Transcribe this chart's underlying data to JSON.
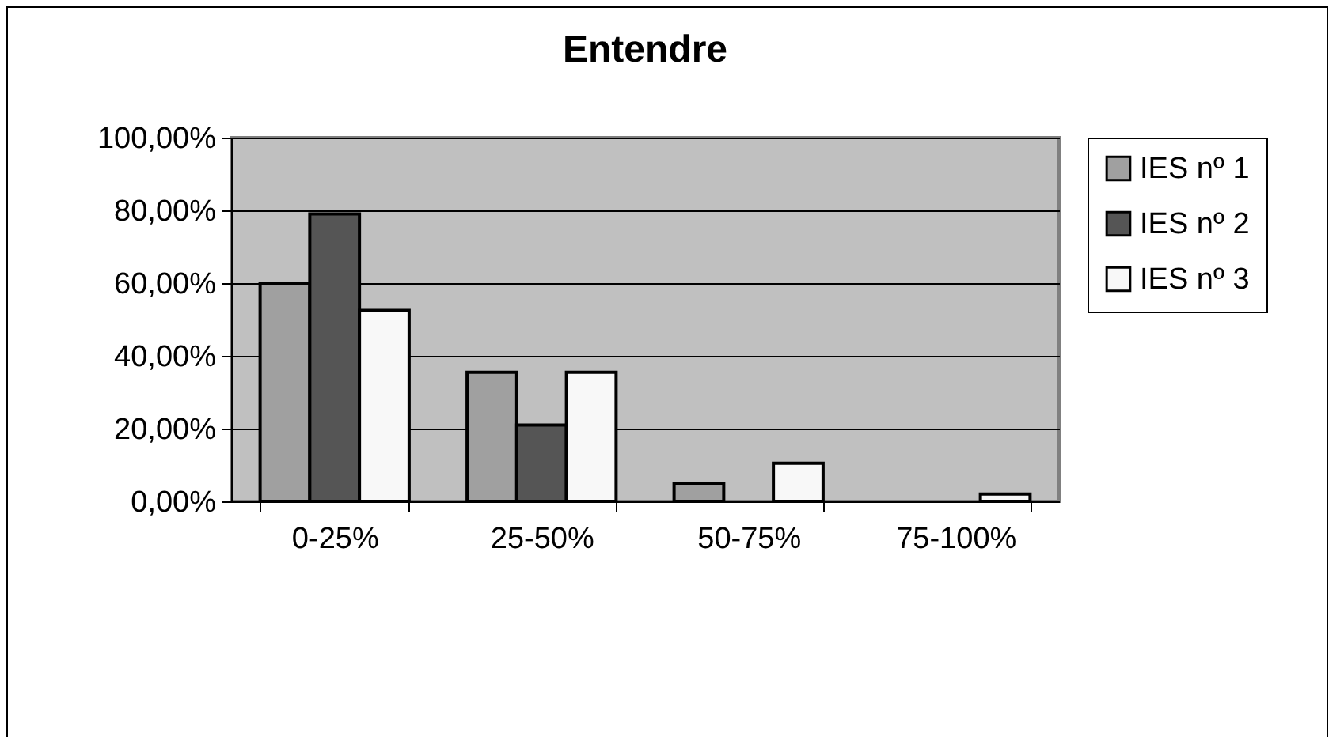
{
  "chart_data": {
    "type": "bar",
    "title": "Entendre",
    "categories": [
      "0-25%",
      "25-50%",
      "50-75%",
      "75-100%"
    ],
    "series": [
      {
        "name": "IES nº 1",
        "color": "#a0a0a0",
        "values": [
          60,
          35.5,
          5,
          0
        ]
      },
      {
        "name": "IES nº 2",
        "color": "#555555",
        "values": [
          79,
          21,
          0,
          0
        ]
      },
      {
        "name": "IES nº 3",
        "color": "#f8f8f8",
        "values": [
          52.5,
          35.5,
          10.5,
          2
        ]
      }
    ],
    "ylim": [
      0,
      100
    ],
    "yticks": [
      {
        "value": 0,
        "label": "0,00%"
      },
      {
        "value": 20,
        "label": "20,00%"
      },
      {
        "value": 40,
        "label": "40,00%"
      },
      {
        "value": 60,
        "label": "60,00%"
      },
      {
        "value": 80,
        "label": "80,00%"
      },
      {
        "value": 100,
        "label": "100,00%"
      }
    ],
    "grid": "y",
    "legend": "right"
  }
}
